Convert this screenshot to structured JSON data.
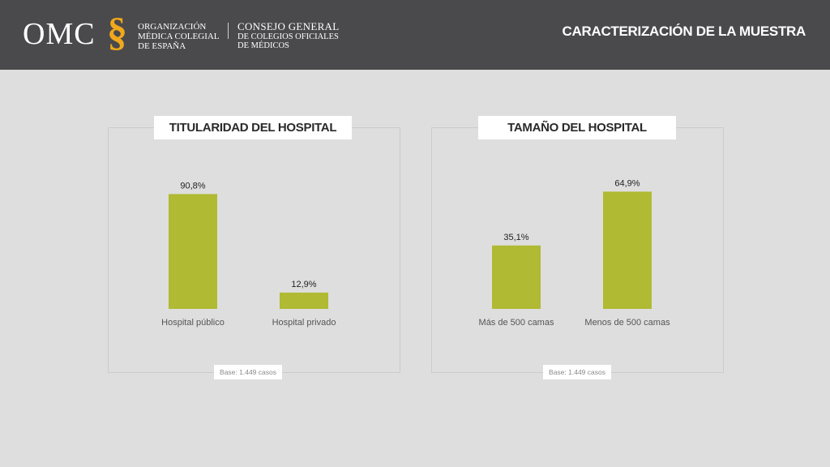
{
  "header": {
    "logo_omc": "OMC",
    "logo_mark": "§",
    "org_lines": [
      "ORGANIZACIÓN",
      "MÉDICA COLEGIAL",
      "DE ESPAÑA"
    ],
    "council_line1": "CONSEJO GENERAL",
    "council_lines": [
      "DE COLEGIOS OFICIALES",
      "DE MÉDICOS"
    ],
    "page_title": "CARACTERIZACIÓN DE LA MUESTRA"
  },
  "colors": {
    "bar": "#b0ba32",
    "header_bg": "#4a4a4c",
    "logo_mark": "#f0a81c"
  },
  "chart_data": [
    {
      "type": "bar",
      "title": "TITULARIDAD DEL HOSPITAL",
      "categories": [
        "Hospital público",
        "Hospital privado"
      ],
      "values": [
        90.8,
        12.9
      ],
      "value_labels": [
        "90,8%",
        "12,9%"
      ],
      "unit": "%",
      "ylim": [
        0,
        100
      ],
      "grid": false,
      "footnote": "Base: 1.449 casos"
    },
    {
      "type": "bar",
      "title": "TAMAÑO DEL HOSPITAL",
      "categories": [
        "Más de 500 camas",
        "Menos de 500 camas"
      ],
      "values": [
        35.1,
        64.9
      ],
      "value_labels": [
        "35,1%",
        "64,9%"
      ],
      "unit": "%",
      "ylim": [
        0,
        70
      ],
      "grid": false,
      "footnote": "Base: 1.449 casos"
    }
  ]
}
